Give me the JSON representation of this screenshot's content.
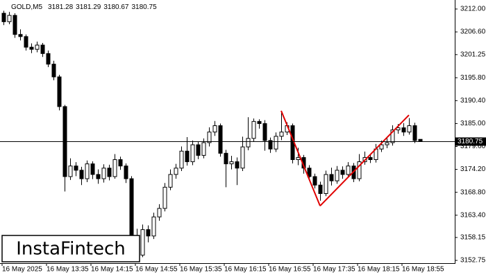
{
  "chart_data": {
    "type": "candlestick",
    "symbol": "GOLD,M5",
    "logo": "InstaFintech",
    "bull_color": "#ffffff",
    "bear_color": "#000000",
    "outline_color": "#000000",
    "categories": [
      "16 May 2025",
      null,
      null,
      null,
      null,
      null,
      null,
      null,
      "16 May 13:35",
      null,
      null,
      null,
      null,
      null,
      null,
      null,
      "16 May 14:15",
      null,
      null,
      null,
      null,
      null,
      null,
      null,
      "16 May 14:55",
      null,
      null,
      null,
      null,
      null,
      null,
      null,
      "16 May 15:35",
      null,
      null,
      null,
      null,
      null,
      null,
      null,
      "16 May 16:15",
      null,
      null,
      null,
      null,
      null,
      null,
      null,
      "16 May 16:55",
      null,
      null,
      null,
      null,
      null,
      null,
      null,
      "16 May 17:35",
      null,
      null,
      null,
      null,
      null,
      null,
      null,
      "16 May 18:15",
      null,
      null,
      null,
      null,
      null,
      null,
      null,
      "16 May 18:55",
      null,
      null,
      null
    ],
    "open": [
      3211.0,
      3209.0,
      3210.5,
      3206.0,
      3205.5,
      3203.0,
      3202.5,
      3203.5,
      3201.5,
      3199.0,
      3196.0,
      3189.0,
      3172.5,
      3175.0,
      3174.0,
      3172.0,
      3175.5,
      3173.0,
      3172.0,
      3174.5,
      3172.5,
      3176.5,
      3175.0,
      3172.0,
      3158.0,
      3154.0,
      3160.0,
      3158.5,
      3163.0,
      3165.0,
      3170.0,
      3173.0,
      3174.5,
      3178.5,
      3176.0,
      3180.0,
      3177.5,
      3180.5,
      3183.0,
      3184.5,
      3178.0,
      3175.5,
      3176.0,
      3174.5,
      3179.5,
      3181.5,
      3185.5,
      3185.0,
      3181.0,
      3179.0,
      3182.0,
      3183.0,
      3184.5,
      3176.5,
      3177.0,
      3174.5,
      3172.5,
      3170.5,
      3168.5,
      3173.0,
      3171.5,
      3174.0,
      3173.0,
      3175.0,
      3172.0,
      3176.0,
      3177.0,
      3176.5,
      3179.0,
      3180.0,
      3180.5,
      3183.5,
      3184.0,
      3183.0,
      3184.5,
      3181.28
    ],
    "high": [
      3211.6,
      3211.3,
      3211.0,
      3207.2,
      3206.0,
      3203.9,
      3204.3,
      3204.0,
      3202.2,
      3199.8,
      3196.5,
      3189.4,
      3176.8,
      3175.9,
      3174.8,
      3176.3,
      3176.1,
      3174.2,
      3175.4,
      3175.3,
      3177.8,
      3177.2,
      3175.6,
      3172.6,
      3160.2,
      3161.2,
      3161.0,
      3164.0,
      3166.0,
      3171.0,
      3174.2,
      3175.5,
      3179.6,
      3181.8,
      3181.0,
      3180.7,
      3181.5,
      3184.1,
      3185.6,
      3185.0,
      3178.8,
      3177.4,
      3177.0,
      3181.9,
      3186.5,
      3186.2,
      3186.0,
      3185.8,
      3181.7,
      3182.9,
      3187.9,
      3185.3,
      3185.0,
      3179.3,
      3177.6,
      3175.2,
      3173.2,
      3171.3,
      3173.9,
      3174.6,
      3175.0,
      3174.9,
      3175.9,
      3175.7,
      3177.8,
      3178.4,
      3177.8,
      3180.2,
      3181.0,
      3181.9,
      3184.6,
      3184.9,
      3185.1,
      3186.3,
      3185.2,
      3181.29
    ],
    "low": [
      3208.2,
      3208.4,
      3205.2,
      3204.6,
      3202.2,
      3201.6,
      3201.8,
      3200.7,
      3198.3,
      3195.2,
      3188.1,
      3169.0,
      3171.7,
      3172.6,
      3170.5,
      3171.2,
      3171.9,
      3170.8,
      3171.1,
      3171.6,
      3172.0,
      3174.1,
      3171.0,
      3156.5,
      3152.9,
      3153.5,
      3157.0,
      3157.8,
      3162.1,
      3164.3,
      3169.3,
      3172.0,
      3173.8,
      3175.1,
      3175.2,
      3176.6,
      3176.8,
      3179.6,
      3182.1,
      3177.2,
      3170.0,
      3174.2,
      3170.5,
      3173.8,
      3178.7,
      3180.8,
      3183.8,
      3178.6,
      3178.1,
      3178.3,
      3181.1,
      3182.3,
      3175.6,
      3175.2,
      3173.2,
      3171.6,
      3169.7,
      3166.8,
      3167.9,
      3170.4,
      3170.8,
      3172.0,
      3172.3,
      3171.2,
      3171.4,
      3175.3,
      3175.7,
      3175.8,
      3178.3,
      3179.2,
      3179.8,
      3182.6,
      3182.1,
      3182.4,
      3180.4,
      3180.67
    ],
    "close": [
      3209.0,
      3210.5,
      3206.0,
      3205.5,
      3203.0,
      3202.5,
      3203.5,
      3201.5,
      3199.0,
      3196.0,
      3189.0,
      3172.5,
      3175.0,
      3174.0,
      3172.0,
      3175.5,
      3173.0,
      3172.0,
      3174.5,
      3172.5,
      3176.5,
      3175.0,
      3172.0,
      3158.0,
      3154.0,
      3160.0,
      3158.5,
      3163.0,
      3165.0,
      3170.0,
      3173.0,
      3174.5,
      3178.5,
      3176.0,
      3180.0,
      3177.5,
      3180.5,
      3183.0,
      3184.5,
      3178.0,
      3175.5,
      3176.0,
      3174.5,
      3179.5,
      3181.5,
      3185.5,
      3185.0,
      3181.0,
      3179.0,
      3182.0,
      3183.0,
      3184.5,
      3176.5,
      3177.0,
      3174.5,
      3172.5,
      3170.5,
      3168.5,
      3173.0,
      3171.5,
      3174.0,
      3173.0,
      3175.0,
      3172.0,
      3176.0,
      3177.0,
      3176.5,
      3179.0,
      3180.0,
      3180.5,
      3183.5,
      3184.0,
      3183.0,
      3184.5,
      3181.0,
      3180.75
    ],
    "pattern": {
      "color": "#e00000",
      "points": [
        {
          "x": 50,
          "y": 3188.0
        },
        {
          "x": 57,
          "y": 3165.6
        },
        {
          "x": 73,
          "y": 3187.0
        }
      ]
    },
    "ylim": [
      3152.1,
      3214.12
    ],
    "yticks": [
      {
        "value": 3212,
        "label": "3212.00"
      },
      {
        "value": 3206.6,
        "label": "3206.60"
      },
      {
        "value": 3201.25,
        "label": "3201.25"
      },
      {
        "value": 3195.8,
        "label": "3195.80"
      },
      {
        "value": 3190.4,
        "label": "3190.40"
      },
      {
        "value": 3185,
        "label": "3185.00"
      },
      {
        "value": 3179.6,
        "label": "3179.60"
      },
      {
        "value": 3174.2,
        "label": "3174.20"
      },
      {
        "value": 3168.8,
        "label": "3168.80"
      },
      {
        "value": 3163.4,
        "label": "3163.40"
      },
      {
        "value": 3158.15,
        "label": "3158.15"
      },
      {
        "value": 3152.75,
        "label": "3152.75"
      }
    ],
    "grid": false
  }
}
